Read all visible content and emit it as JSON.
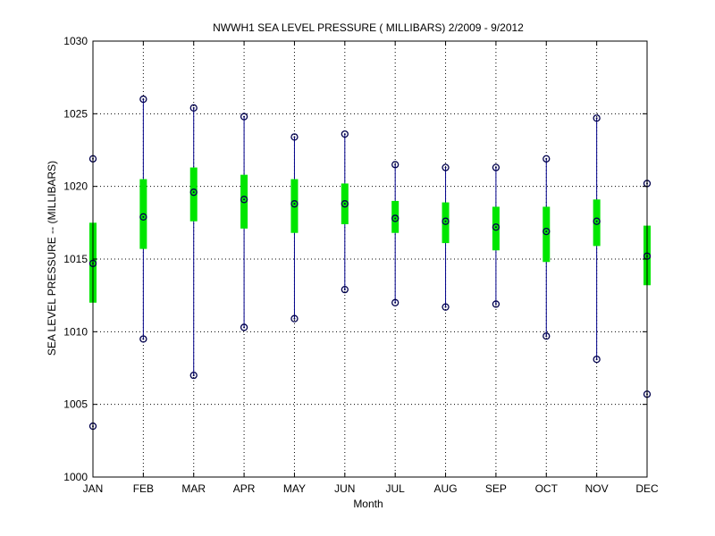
{
  "chart_data": {
    "type": "boxplot",
    "title": "NWWH1  SEA LEVEL PRESSURE ( MILLIBARS) 2/2009 - 9/2012",
    "xlabel": "Month",
    "ylabel": "SEA LEVEL PRESSURE -- (MILLIBARS)",
    "ylim": [
      1000,
      1030
    ],
    "yticks": [
      "1000",
      "1005",
      "1010",
      "1015",
      "1020",
      "1025",
      "1030"
    ],
    "grid": true,
    "categories": [
      "JAN",
      "FEB",
      "MAR",
      "APR",
      "MAY",
      "JUN",
      "JUL",
      "AUG",
      "SEP",
      "OCT",
      "NOV",
      "DEC"
    ],
    "series": [
      {
        "min": [
          1003.5,
          1009.5,
          1007.0,
          1010.3,
          1010.9,
          1012.9,
          1012.0,
          1011.7,
          1011.9,
          1009.7,
          1008.1,
          1005.7
        ]
      },
      {
        "q1": [
          1012.0,
          1015.7,
          1017.6,
          1017.1,
          1016.8,
          1017.4,
          1016.8,
          1016.1,
          1015.6,
          1014.8,
          1015.9,
          1013.2
        ]
      },
      {
        "median": [
          1014.7,
          1017.9,
          1019.6,
          1019.1,
          1018.8,
          1018.8,
          1017.8,
          1017.6,
          1017.2,
          1016.9,
          1017.6,
          1015.2
        ]
      },
      {
        "q3": [
          1017.5,
          1020.5,
          1021.3,
          1020.8,
          1020.5,
          1020.2,
          1019.0,
          1018.9,
          1018.6,
          1018.6,
          1019.1,
          1017.3
        ]
      },
      {
        "max": [
          1021.9,
          1026.0,
          1025.4,
          1024.8,
          1023.4,
          1023.6,
          1021.5,
          1021.3,
          1021.3,
          1021.9,
          1024.7,
          1020.2
        ]
      }
    ],
    "colors": {
      "box": "#00e600",
      "whisker": "#00008b",
      "marker": "#00004d",
      "grid": "#000000"
    }
  }
}
